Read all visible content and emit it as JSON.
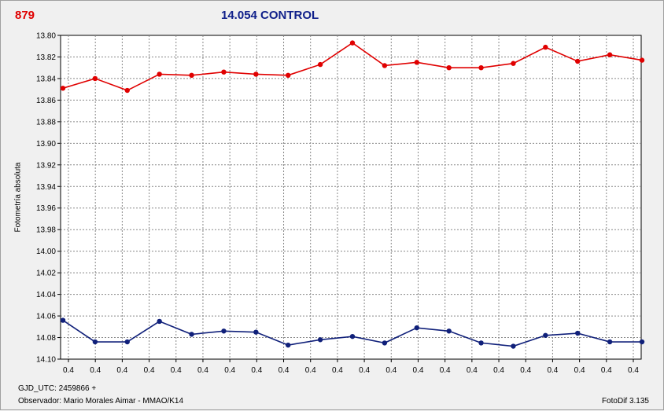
{
  "header": {
    "object_id": "879",
    "title": "14.054 CONTROL"
  },
  "footer": {
    "gjd": "GJD_UTC: 2459866 +",
    "observer": "Observador: Mario Morales Aimar - MMAO/K14",
    "software": "FotoDif 3.135"
  },
  "colors": {
    "series_red": "#e00000",
    "series_blue": "#10207a",
    "grid": "#888888",
    "plot_bg": "#ffffff"
  },
  "chart_data": {
    "type": "line",
    "title": "14.054 CONTROL",
    "xlabel": "",
    "ylabel": "Fotometría absoluta",
    "ylim": [
      13.8,
      14.1
    ],
    "y_inverted": true,
    "y_ticks": [
      "13.80",
      "13.82",
      "13.84",
      "13.86",
      "13.88",
      "13.90",
      "13.92",
      "13.94",
      "13.96",
      "13.98",
      "14.00",
      "14.02",
      "14.04",
      "14.06",
      "14.08",
      "14.10"
    ],
    "x_tick_labels": [
      "0.4",
      "0.4",
      "0.4",
      "0.4",
      "0.4",
      "0.4",
      "0.4",
      "0.4",
      "0.4",
      "0.4",
      "0.4",
      "0.4",
      "0.4",
      "0.4",
      "0.4",
      "0.4",
      "0.4",
      "0.4",
      "0.4",
      "0.4",
      "0.4",
      "0.4"
    ],
    "grid": true,
    "series": [
      {
        "color": "#e00000",
        "values": [
          13.849,
          13.84,
          13.851,
          13.836,
          13.837,
          13.834,
          13.836,
          13.837,
          13.827,
          13.807,
          13.828,
          13.825,
          13.83,
          13.83,
          13.826,
          13.811,
          13.824,
          13.818,
          13.823
        ]
      },
      {
        "color": "#10207a",
        "values": [
          14.064,
          14.084,
          14.084,
          14.065,
          14.077,
          14.074,
          14.075,
          14.087,
          14.082,
          14.079,
          14.085,
          14.071,
          14.074,
          14.085,
          14.088,
          14.078,
          14.076,
          14.084,
          14.084
        ]
      }
    ]
  }
}
